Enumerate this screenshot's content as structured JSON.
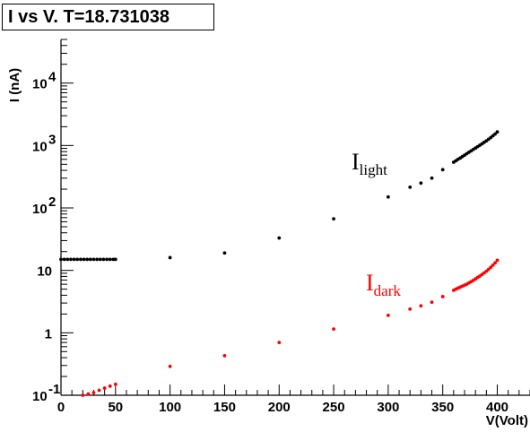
{
  "chart_data": {
    "type": "scatter",
    "title": "I vs V. T=18.731038",
    "xlabel": "V(Volt)",
    "ylabel": "I (nA)",
    "xlim": [
      0,
      430
    ],
    "ylim": [
      0.1,
      50000
    ],
    "yscale": "log",
    "grid": false,
    "x_tick_labels": [
      "0",
      "50",
      "100",
      "150",
      "200",
      "250",
      "300",
      "350",
      "400"
    ],
    "x_tick_values": [
      0,
      50,
      100,
      150,
      200,
      250,
      300,
      350,
      400
    ],
    "y_tick_labels": [
      {
        "value": 0.1,
        "base": "10",
        "exp": "-1"
      },
      {
        "value": 1,
        "base": "1",
        "exp": ""
      },
      {
        "value": 10,
        "base": "10",
        "exp": ""
      },
      {
        "value": 100,
        "base": "10",
        "exp": "2"
      },
      {
        "value": 1000,
        "base": "10",
        "exp": "3"
      },
      {
        "value": 10000,
        "base": "10",
        "exp": "4"
      }
    ],
    "series": [
      {
        "color": "#000000",
        "x": [
          0,
          3,
          6,
          9,
          12,
          15,
          18,
          21,
          24,
          27,
          30,
          33,
          36,
          39,
          42,
          45,
          48,
          50,
          100,
          150,
          200,
          250,
          300,
          320,
          330,
          340,
          350,
          360,
          362,
          364,
          366,
          368,
          370,
          372,
          374,
          376,
          378,
          380,
          382,
          384,
          386,
          388,
          390,
          392,
          394,
          396,
          398,
          400
        ],
        "y": [
          15,
          15,
          15,
          15,
          15,
          15,
          15,
          15,
          15,
          15,
          15,
          15,
          15,
          15,
          15,
          15,
          15,
          15,
          16,
          19,
          33,
          67,
          150,
          215,
          250,
          300,
          410,
          540,
          570,
          600,
          630,
          665,
          700,
          740,
          780,
          820,
          865,
          910,
          960,
          1010,
          1065,
          1125,
          1190,
          1260,
          1340,
          1430,
          1530,
          1650
        ]
      },
      {
        "color": "#ff0000",
        "x": [
          20,
          25,
          30,
          35,
          40,
          45,
          50,
          100,
          150,
          200,
          250,
          300,
          320,
          330,
          340,
          350,
          360,
          362,
          364,
          366,
          368,
          370,
          372,
          374,
          376,
          378,
          380,
          382,
          384,
          386,
          388,
          390,
          392,
          394,
          396,
          398,
          400
        ],
        "y": [
          0.1,
          0.105,
          0.11,
          0.12,
          0.13,
          0.14,
          0.15,
          0.29,
          0.43,
          0.7,
          1.15,
          1.9,
          2.4,
          2.7,
          3.1,
          3.8,
          4.8,
          5.0,
          5.2,
          5.4,
          5.6,
          5.8,
          6.0,
          6.3,
          6.6,
          6.9,
          7.3,
          7.7,
          8.1,
          8.6,
          9.1,
          9.7,
          10.4,
          11.2,
          12.1,
          13.2,
          14.5
        ]
      }
    ],
    "annotations": [
      {
        "base": "I",
        "sub": "light",
        "color": "#000000"
      },
      {
        "base": "I",
        "sub": "dark",
        "color": "#ff0000"
      }
    ]
  }
}
